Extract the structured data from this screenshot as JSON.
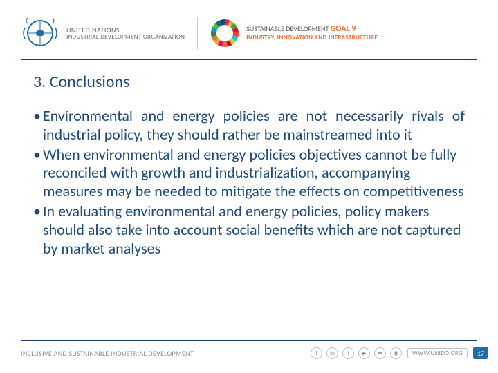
{
  "header": {
    "unido": {
      "line1": "UNITED NATIONS",
      "line2": "INDUSTRIAL DEVELOPMENT ORGANIZATION",
      "logo_color": "#1e6fa8"
    },
    "sdg": {
      "line1_a": "SUSTAINABLE DEVELOPMENT ",
      "goal_word": "GOAL",
      "goal_num": " 9",
      "line2": "INDUSTRY, INNOVATION AND INFRASTRUCTURE",
      "wheel_colors": [
        "#e5243b",
        "#dda63a",
        "#4c9f38",
        "#c5192d",
        "#ff3a21",
        "#26bde2",
        "#fcc30b",
        "#a21942",
        "#fd6925",
        "#dd1367",
        "#fd9d24",
        "#bf8b2e",
        "#3f7e44",
        "#0a97d9",
        "#56c02b",
        "#00689d",
        "#19486a"
      ]
    }
  },
  "slide": {
    "title": "3. Conclusions",
    "bullets": [
      "Environmental and energy policies are not necessarily rivals of industrial policy, they should rather be mainstreamed into it",
      "When environmental and energy policies objectives cannot be fully reconciled with growth and industrialization, accompanying measures may be needed to mitigate the effects on competitiveness",
      "In evaluating environmental and energy policies, policy makers should also take into account social benefits which are not captured by market analyses"
    ],
    "text_color": "#1e4b7a"
  },
  "footer": {
    "tagline": "INCLUSIVE AND SUSTAINABLE INDUSTRIAL DEVELOPMENT",
    "social_glyphs": [
      "f",
      "in",
      "t",
      "▶",
      "••",
      "◉"
    ],
    "url": "WWW.UNIDO.ORG",
    "page": "17",
    "page_bg": "#1e6fa8"
  }
}
